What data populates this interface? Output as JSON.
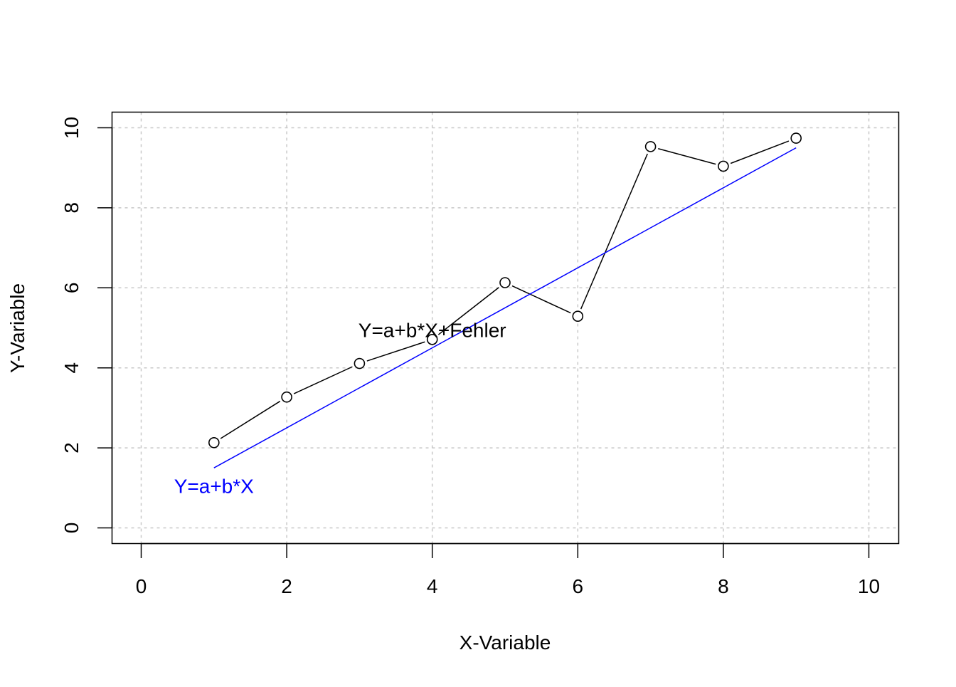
{
  "chart_data": {
    "type": "line",
    "title": "",
    "xlabel": "X-Variable",
    "ylabel": "Y-Variable",
    "xlim": [
      0,
      10
    ],
    "ylim": [
      0,
      10
    ],
    "x_ticks": [
      0,
      2,
      4,
      6,
      8,
      10
    ],
    "y_ticks": [
      0,
      2,
      4,
      6,
      8,
      10
    ],
    "x_tick_labels": [
      "0",
      "2",
      "4",
      "6",
      "8",
      "10"
    ],
    "y_tick_labels": [
      "0",
      "2",
      "4",
      "6",
      "8",
      "10"
    ],
    "grid": true,
    "series": [
      {
        "type": "line",
        "style": "points-and-lines",
        "color": "#000000",
        "x": [
          1,
          2,
          3,
          4,
          5,
          6,
          7,
          8,
          9
        ],
        "y": [
          2.13,
          3.27,
          4.11,
          4.71,
          6.13,
          5.29,
          9.53,
          9.04,
          9.74
        ]
      },
      {
        "type": "line",
        "style": "line",
        "color": "#0000ff",
        "x": [
          1,
          9
        ],
        "y": [
          1.5,
          9.5
        ]
      }
    ],
    "annotations": [
      {
        "text": "Y=a+b*X+Fehler",
        "x": 4.0,
        "y": 4.9,
        "color": "#000000"
      },
      {
        "text": "Y=a+b*X",
        "x": 1.0,
        "y": 1.0,
        "color": "#0000ff"
      }
    ]
  }
}
